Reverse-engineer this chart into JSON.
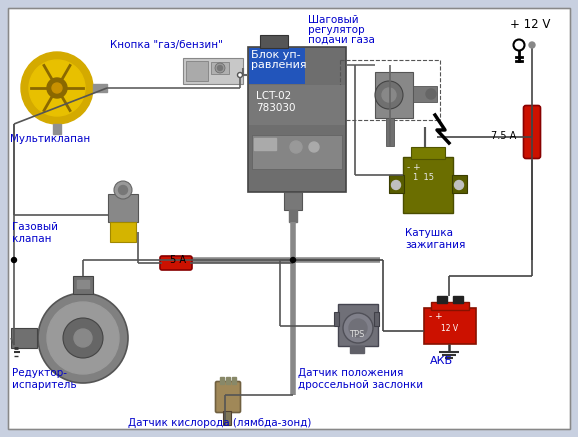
{
  "bg_color": "#c8d0e0",
  "white_bg": "#f0f0f0",
  "text_color": "#0000cc",
  "black": "#000000",
  "wire_dark": "#505050",
  "wire_gray": "#808080",
  "labels": {
    "multiklap": "Мультиклапан",
    "gas_valve_1": "Газовый",
    "gas_valve_2": "клапан",
    "blok_1": "Блок уп-",
    "blok_2": "равления",
    "blok_model": "LCT-02\n783030",
    "knopka": "Кнопка \"газ/бензин\"",
    "shagoviy_1": "Шаговый",
    "shagoviy_2": "регулятор",
    "shagoviy_3": "подачи газа",
    "katushka_1": "Катушка",
    "katushka_2": "зажигания",
    "akb": "АКБ",
    "reduktor_1": "Редуктор-",
    "reduktor_2": "испаритель",
    "lambda": "Датчик кислорода (лямбда-зонд)",
    "tps_1": "Датчик положения",
    "tps_2": "дроссельной заслонки",
    "plus12v": "+ 12 V",
    "fuse5a": "5 А",
    "fuse75a": "7.5 А"
  }
}
